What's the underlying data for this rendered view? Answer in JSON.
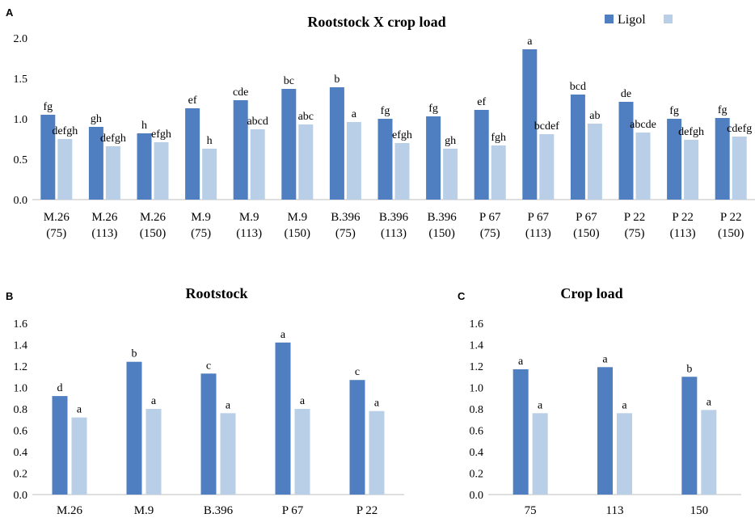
{
  "colors": {
    "dark": "#4F7FC0",
    "light": "#B9CFE8",
    "axis": "#BFBFBF"
  },
  "legend": {
    "series1": "Ligol",
    "series2": ""
  },
  "chart_data": [
    {
      "panel": "A",
      "type": "bar",
      "title": "Rootstock X crop load",
      "ylim": [
        0,
        2.0
      ],
      "yticks": [
        "0.0",
        "0.5",
        "1.0",
        "1.5",
        "2.0"
      ],
      "categories": [
        [
          "M.26",
          "(75)"
        ],
        [
          "M.26",
          "(113)"
        ],
        [
          "M.26",
          "(150)"
        ],
        [
          "M.9",
          "(75)"
        ],
        [
          "M.9",
          "(113)"
        ],
        [
          "M.9",
          "(150)"
        ],
        [
          "B.396",
          "(75)"
        ],
        [
          "B.396",
          "(113)"
        ],
        [
          "B.396",
          "(150)"
        ],
        [
          "P 67",
          "(75)"
        ],
        [
          "P 67",
          "(113)"
        ],
        [
          "P 67",
          "(150)"
        ],
        [
          "P 22",
          "(75)"
        ],
        [
          "P 22",
          "(113)"
        ],
        [
          "P 22",
          "(150)"
        ]
      ],
      "series": [
        {
          "name": "Ligol",
          "values": [
            1.05,
            0.9,
            0.82,
            1.13,
            1.23,
            1.37,
            1.39,
            1.0,
            1.03,
            1.11,
            1.86,
            1.3,
            1.21,
            1.0,
            1.01
          ],
          "labels": [
            "fg",
            "gh",
            "h",
            "ef",
            "cde",
            "bc",
            "b",
            "fg",
            "fg",
            "ef",
            "a",
            "bcd",
            "de",
            "fg",
            "fg"
          ]
        },
        {
          "name": "",
          "values": [
            0.75,
            0.66,
            0.71,
            0.63,
            0.87,
            0.93,
            0.96,
            0.7,
            0.63,
            0.67,
            0.81,
            0.94,
            0.83,
            0.74,
            0.78
          ],
          "labels": [
            "defgh",
            "defgh",
            "efgh",
            "h",
            "abcd",
            "abc",
            "a",
            "efgh",
            "gh",
            "fgh",
            "bcdef",
            "ab",
            "abcde",
            "defgh",
            "cdefg"
          ]
        }
      ]
    },
    {
      "panel": "B",
      "type": "bar",
      "title": "Rootstock",
      "ylim": [
        0,
        1.6
      ],
      "yticks": [
        "0.0",
        "0.2",
        "0.4",
        "0.6",
        "0.8",
        "1.0",
        "1.2",
        "1.4",
        "1.6"
      ],
      "categories": [
        [
          "M.26"
        ],
        [
          "M.9"
        ],
        [
          "B.396"
        ],
        [
          "P 67"
        ],
        [
          "P 22"
        ]
      ],
      "series": [
        {
          "name": "Ligol",
          "values": [
            0.92,
            1.24,
            1.13,
            1.42,
            1.07
          ],
          "labels": [
            "d",
            "b",
            "c",
            "a",
            "c"
          ]
        },
        {
          "name": "",
          "values": [
            0.72,
            0.8,
            0.76,
            0.8,
            0.78
          ],
          "labels": [
            "a",
            "a",
            "a",
            "a",
            "a"
          ]
        }
      ]
    },
    {
      "panel": "C",
      "type": "bar",
      "title": "Crop load",
      "ylim": [
        0,
        1.6
      ],
      "yticks": [
        "0.0",
        "0.2",
        "0.4",
        "0.6",
        "0.8",
        "1.0",
        "1.2",
        "1.4",
        "1.6"
      ],
      "categories": [
        [
          "75"
        ],
        [
          "113"
        ],
        [
          "150"
        ]
      ],
      "series": [
        {
          "name": "Ligol",
          "values": [
            1.17,
            1.19,
            1.1
          ],
          "labels": [
            "a",
            "a",
            "b"
          ]
        },
        {
          "name": "",
          "values": [
            0.76,
            0.76,
            0.79
          ],
          "labels": [
            "a",
            "a",
            "a"
          ]
        }
      ]
    }
  ]
}
